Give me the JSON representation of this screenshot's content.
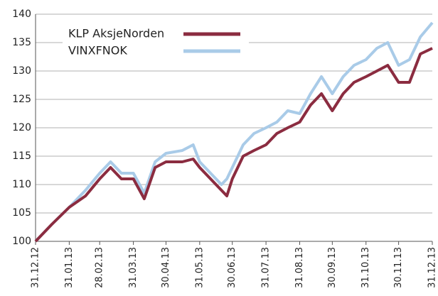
{
  "chart_data": {
    "type": "line",
    "x": [
      "31.12.12",
      "15.01.13",
      "31.01.13",
      "15.02.13",
      "28.02.13",
      "10.03.13",
      "20.03.13",
      "31.03.13",
      "10.04.13",
      "20.04.13",
      "30.04.13",
      "15.05.13",
      "25.05.13",
      "31.05.13",
      "10.06.13",
      "20.06.13",
      "25.06.13",
      "30.06.13",
      "10.07.13",
      "20.07.13",
      "31.07.13",
      "10.08.13",
      "20.08.13",
      "31.08.13",
      "10.09.13",
      "20.09.13",
      "30.09.13",
      "10.10.13",
      "20.10.13",
      "31.10.13",
      "10.11.13",
      "20.11.13",
      "30.11.13",
      "10.12.13",
      "20.12.13",
      "31.12.13"
    ],
    "series": [
      {
        "name": "KLP AksjeNorden",
        "color": "#8b2c40",
        "values": [
          100,
          103,
          106,
          108,
          111,
          113,
          111,
          111,
          107.5,
          113,
          114,
          114,
          114.5,
          113,
          111,
          109,
          108,
          111,
          115,
          116,
          117,
          119,
          120,
          121,
          124,
          126,
          123,
          126,
          128,
          129,
          130,
          131,
          128,
          128,
          133,
          134
        ]
      },
      {
        "name": "VINXFNOK",
        "color": "#a9cbe8",
        "values": [
          100,
          103,
          106,
          109,
          112,
          114,
          112,
          112,
          108.5,
          114,
          115.5,
          116,
          117,
          114,
          112,
          110,
          111,
          113,
          117,
          119,
          120,
          121,
          123,
          122.5,
          126,
          129,
          126,
          129,
          131,
          132,
          134,
          135,
          131,
          132,
          136,
          138.5
        ]
      }
    ],
    "xlim": [
      "31.12.12",
      "31.12.13"
    ],
    "xticks": [
      "31.12.12",
      "31.01.13",
      "28.02.13",
      "31.03.13",
      "30.04.13",
      "31.05.13",
      "30.06.13",
      "31.07.13",
      "31.08.13",
      "30.09.13",
      "31.10.13",
      "30.11.13",
      "31.12.13"
    ],
    "ylim": [
      100,
      140
    ],
    "yticks": [
      100,
      105,
      110,
      115,
      120,
      125,
      130,
      135,
      140
    ],
    "grid": true,
    "legend": "top-left"
  }
}
